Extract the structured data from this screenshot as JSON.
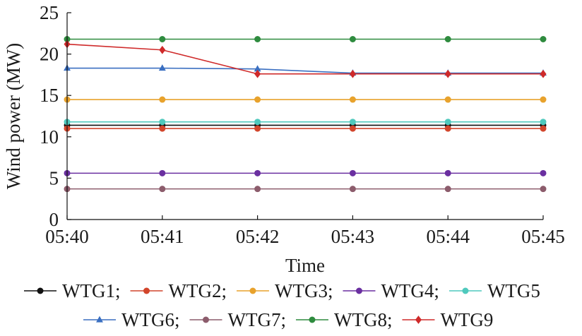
{
  "chart_data": {
    "type": "line",
    "title": "",
    "xlabel": "Time",
    "ylabel": "Wind power (MW)",
    "categories": [
      "05:40",
      "05:41",
      "05:42",
      "05:43",
      "05:44",
      "05:45"
    ],
    "ylim": [
      0,
      25
    ],
    "yticks": [
      0,
      5,
      10,
      15,
      20,
      25
    ],
    "grid": false,
    "legend_position": "bottom",
    "series": [
      {
        "name": "WTG1;",
        "color": "#111111",
        "marker": "circle",
        "values": [
          11.4,
          11.4,
          11.4,
          11.4,
          11.4,
          11.4
        ]
      },
      {
        "name": "WTG2;",
        "color": "#d2452b",
        "marker": "circle",
        "values": [
          11.0,
          11.0,
          11.0,
          11.0,
          11.0,
          11.0
        ]
      },
      {
        "name": "WTG3;",
        "color": "#e8a22c",
        "marker": "circle",
        "values": [
          14.5,
          14.5,
          14.5,
          14.5,
          14.5,
          14.5
        ]
      },
      {
        "name": "WTG4;",
        "color": "#6a2fa0",
        "marker": "circle",
        "values": [
          5.6,
          5.6,
          5.6,
          5.6,
          5.6,
          5.6
        ]
      },
      {
        "name": "WTG5",
        "color": "#4fc9bd",
        "marker": "circle",
        "values": [
          11.8,
          11.8,
          11.8,
          11.8,
          11.8,
          11.8
        ]
      },
      {
        "name": "WTG6;",
        "color": "#3a6fc1",
        "marker": "triangle",
        "values": [
          18.3,
          18.3,
          18.2,
          17.7,
          17.7,
          17.7
        ]
      },
      {
        "name": "WTG7;",
        "color": "#8c5c6c",
        "marker": "circle",
        "values": [
          3.7,
          3.7,
          3.7,
          3.7,
          3.7,
          3.7
        ]
      },
      {
        "name": "WTG8;",
        "color": "#2e8b3e",
        "marker": "circle",
        "values": [
          21.8,
          21.8,
          21.8,
          21.8,
          21.8,
          21.8
        ]
      },
      {
        "name": "WTG9",
        "color": "#cf2a2a",
        "marker": "diamond",
        "values": [
          21.2,
          20.5,
          17.6,
          17.6,
          17.6,
          17.6
        ]
      }
    ],
    "legend_rows": [
      [
        0,
        1,
        2,
        3,
        4
      ],
      [
        5,
        6,
        7,
        8
      ]
    ]
  }
}
